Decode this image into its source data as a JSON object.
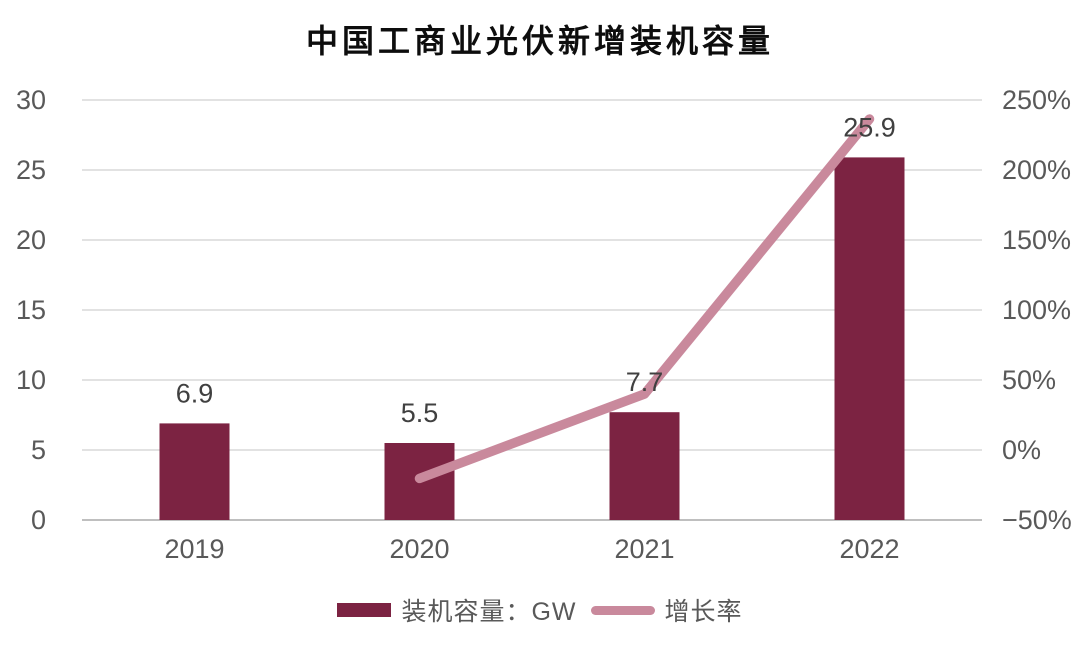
{
  "chart_data": {
    "type": "combo-bar-line",
    "title": "中国工商业光伏新增装机容量",
    "categories": [
      "2019",
      "2020",
      "2021",
      "2022"
    ],
    "series": [
      {
        "name": "装机容量：GW",
        "type": "bar",
        "axis": "left",
        "values": [
          6.9,
          5.5,
          7.7,
          25.9
        ],
        "data_labels": [
          "6.9",
          "5.5",
          "7.7",
          "25.9"
        ]
      },
      {
        "name": "增长率",
        "type": "line",
        "axis": "right",
        "values": [
          null,
          -20.3,
          40.0,
          236.4
        ]
      }
    ],
    "left_axis": {
      "min": 0,
      "max": 30,
      "ticks_top_to_bottom": [
        "30",
        "25",
        "20",
        "15",
        "10",
        "5",
        "0"
      ]
    },
    "right_axis": {
      "min": -50,
      "max": 250,
      "unit": "%",
      "ticks_top_to_bottom": [
        "250%",
        "200%",
        "150%",
        "100%",
        "50%",
        "0%",
        "−50%"
      ]
    },
    "grid": true,
    "legend_position": "bottom"
  },
  "legend": {
    "capacity_label": "装机容量：GW",
    "growth_label": "增长率"
  },
  "colors": {
    "bar": "#7C2342",
    "line": "#C9899C",
    "grid": "#D9D9D9",
    "axis_line": "#BFBFBF",
    "tick_text": "#595959",
    "data_label": "#404040",
    "title_text": "#0D0D0D",
    "background": "#FFFFFF"
  }
}
